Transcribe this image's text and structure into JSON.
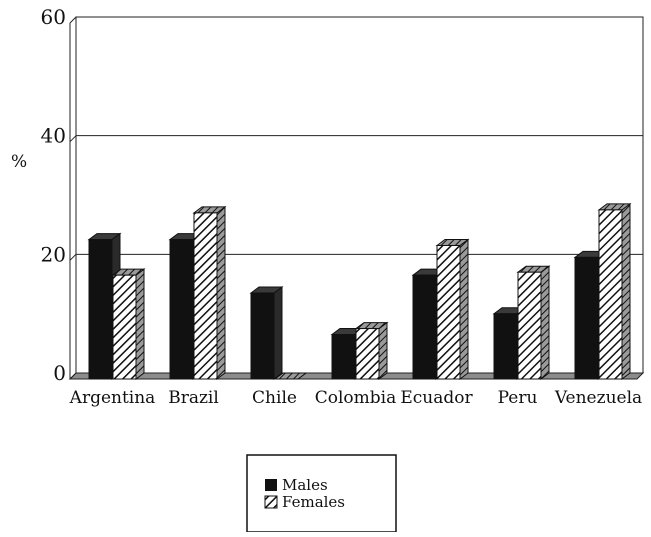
{
  "chart_data": {
    "type": "bar",
    "title": "",
    "xlabel": "",
    "ylabel": "%",
    "ylim": [
      0,
      60
    ],
    "yticks": [
      0,
      20,
      40,
      60
    ],
    "grid": true,
    "style": "3d-bars",
    "legend_position": "bottom-center",
    "categories": [
      "Argentina",
      "Brazil",
      "Chile",
      "Colombia",
      "Ecuador",
      "Peru",
      "Venezuela"
    ],
    "series": [
      {
        "name": "Males",
        "values": [
          23.5,
          23.5,
          14.5,
          7.5,
          17.5,
          11,
          20.5
        ],
        "fill": "solid",
        "color": "#111111"
      },
      {
        "name": "Females",
        "values": [
          17.5,
          28,
          0,
          8.5,
          22.5,
          18,
          28.5
        ],
        "fill": "diagonal-hatch",
        "color": "#111111"
      }
    ]
  }
}
